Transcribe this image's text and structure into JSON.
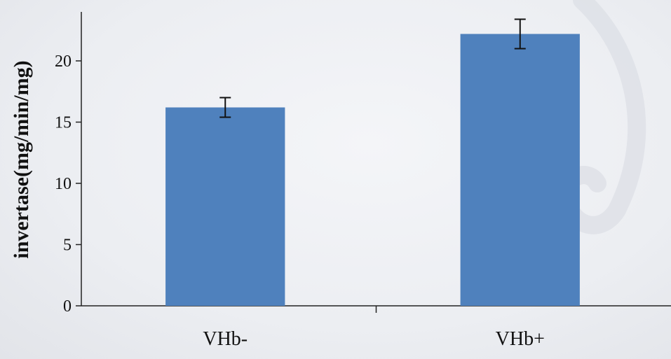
{
  "chart_data": {
    "type": "bar",
    "title": "",
    "xlabel": "",
    "ylabel": "invertase(mg/min/mg)",
    "categories": [
      "VHb-",
      "VHb+"
    ],
    "values": [
      16.2,
      22.2
    ],
    "errors": [
      0.8,
      1.2
    ],
    "ylim": [
      0,
      24
    ],
    "yticks": [
      0,
      5,
      10,
      15,
      20
    ],
    "bar_color": "#4f81bd",
    "grid": false,
    "legend": "none"
  }
}
